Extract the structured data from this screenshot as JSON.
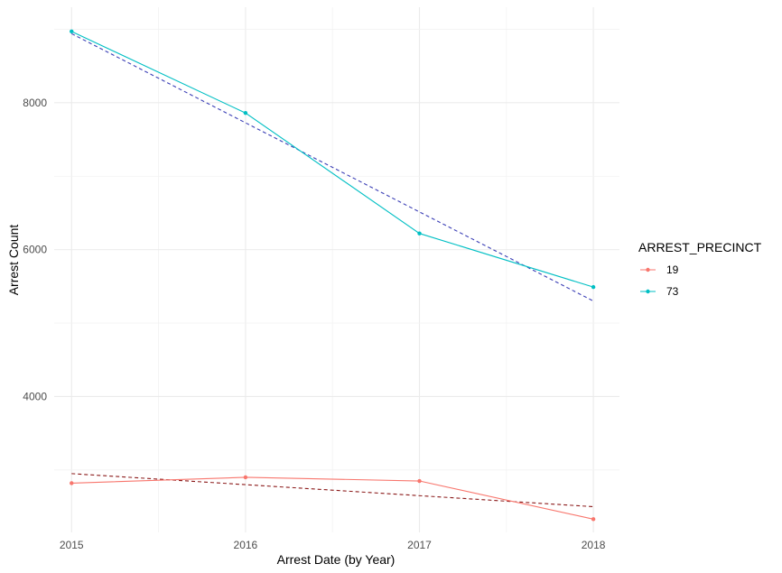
{
  "chart_data": {
    "type": "line",
    "xlabel": "Arrest Date (by Year)",
    "ylabel": "Arrest Count",
    "x": [
      2015,
      2016,
      2017,
      2018
    ],
    "x_tick_labels": [
      "2015",
      "2016",
      "2017",
      "2018"
    ],
    "y_ticks": [
      4000,
      6000,
      8000
    ],
    "y_tick_labels": [
      "4000",
      "6000",
      "8000"
    ],
    "xlim": [
      2014.9,
      2018.15
    ],
    "ylim": [
      2150,
      9300
    ],
    "grid": true,
    "legend": {
      "title": "ARREST_PRECINCT",
      "position": "right",
      "entries": [
        "19",
        "73"
      ]
    },
    "series": [
      {
        "name": "19",
        "color": "#F8766D",
        "values": [
          2820,
          2900,
          2850,
          2330
        ],
        "trend": {
          "color": "#8B1A1A",
          "start": 2950,
          "end": 2500
        }
      },
      {
        "name": "73",
        "color": "#00BFC4",
        "values": [
          8970,
          7860,
          6220,
          5490
        ],
        "trend": {
          "color": "#3B3FB6",
          "start": 8940,
          "end": 5300
        }
      }
    ]
  }
}
